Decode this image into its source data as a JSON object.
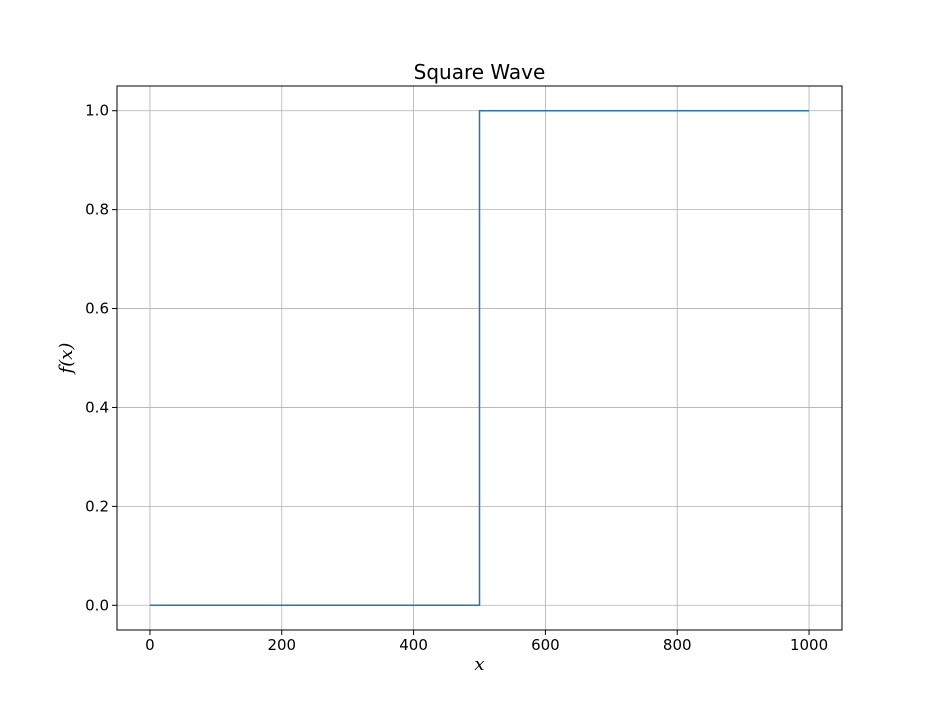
{
  "chart_data": {
    "type": "line",
    "title": "Square Wave",
    "xlabel": "x",
    "ylabel": "f(x)",
    "xlim": [
      -50,
      1050
    ],
    "ylim": [
      -0.05,
      1.05
    ],
    "xticks": [
      0,
      200,
      400,
      600,
      800,
      1000
    ],
    "yticks": [
      0.0,
      0.2,
      0.4,
      0.6,
      0.8,
      1.0
    ],
    "xtick_labels": [
      "0",
      "200",
      "400",
      "600",
      "800",
      "1000"
    ],
    "ytick_labels": [
      "0.0",
      "0.2",
      "0.4",
      "0.6",
      "0.8",
      "1.0"
    ],
    "grid": true,
    "series": [
      {
        "x": [
          0,
          500,
          500,
          1000
        ],
        "y": [
          0,
          0,
          1,
          1
        ],
        "color": "#1f77b4"
      }
    ]
  }
}
